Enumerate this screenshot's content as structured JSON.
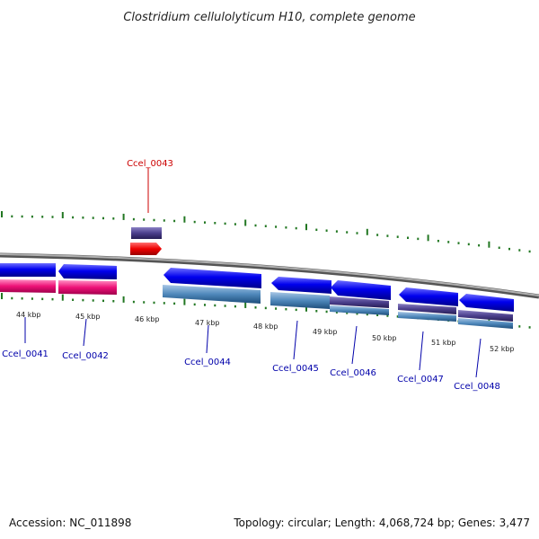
{
  "title": "Clostridium cellulolyticum H10, complete genome",
  "footer": {
    "accession": "Accession: NC_011898",
    "summary": "Topology: circular; Length: 4,068,724 bp; Genes: 3,477"
  },
  "scale_labels": [
    "44 kbp",
    "45 kbp",
    "46 kbp",
    "47 kbp",
    "48 kbp",
    "49 kbp",
    "50 kbp",
    "51 kbp",
    "52 kbp"
  ],
  "genes": [
    {
      "label": "Ccel_0041",
      "color": "#0000aa"
    },
    {
      "label": "Ccel_0042",
      "color": "#0000aa"
    },
    {
      "label": "Ccel_0043",
      "color": "#cc0000",
      "highlight": true
    },
    {
      "label": "Ccel_0044",
      "color": "#0000aa"
    },
    {
      "label": "Ccel_0045",
      "color": "#0000aa"
    },
    {
      "label": "Ccel_0046",
      "color": "#0000aa"
    },
    {
      "label": "Ccel_0047",
      "color": "#0000aa"
    },
    {
      "label": "Ccel_0048",
      "color": "#0000aa"
    }
  ],
  "colors": {
    "tick": "#227722",
    "backbone": "#888888",
    "cds_blue": "#0000ee",
    "steelblue": "#4f88bb",
    "purple": "#4b3f8c",
    "magenta": "#ee1177",
    "red": "#ee0000"
  }
}
